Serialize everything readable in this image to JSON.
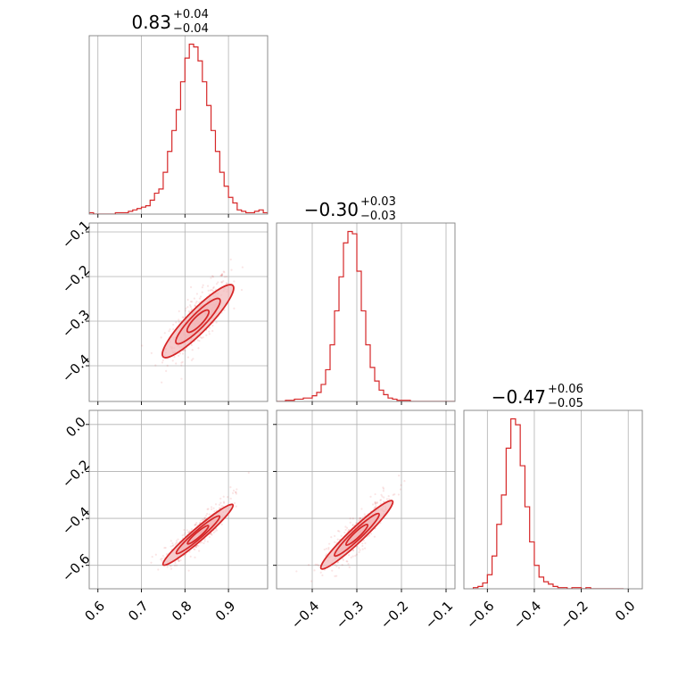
{
  "figure": {
    "accent_color": "#d62728",
    "fill_color": "#f2b6b8",
    "grid": true
  },
  "chart_data": [
    {
      "type": "histogram",
      "panel": "row-0-col-0",
      "title": {
        "value": "0.83",
        "plus": "+0.04",
        "minus": "−0.04"
      },
      "xlim": [
        0.58,
        0.99
      ],
      "bins_start": 0.58,
      "bin_width": 0.01,
      "counts": [
        1,
        0,
        0,
        0,
        0,
        0,
        1,
        1,
        1,
        2,
        3,
        4,
        5,
        6,
        10,
        15,
        18,
        30,
        45,
        60,
        75,
        95,
        112,
        122,
        120,
        110,
        95,
        78,
        60,
        45,
        30,
        20,
        12,
        8,
        3,
        2,
        1,
        1,
        2,
        3,
        1
      ],
      "x_ticks": [],
      "y_ticks": []
    },
    {
      "type": "scatter-contour",
      "panel": "row-1-col-0",
      "xlim": [
        0.58,
        0.99
      ],
      "ylim": [
        -0.48,
        -0.08
      ],
      "center": [
        0.83,
        -0.3
      ],
      "slope": 1.0,
      "spread": 0.028,
      "x_ticks": [],
      "y_ticks": [
        {
          "value": -0.1,
          "label": "−0.1"
        },
        {
          "value": -0.2,
          "label": "−0.2"
        },
        {
          "value": -0.3,
          "label": "−0.3"
        },
        {
          "value": -0.4,
          "label": "−0.4"
        }
      ]
    },
    {
      "type": "histogram",
      "panel": "row-1-col-1",
      "title": {
        "value": "−0.30",
        "plus": "+0.03",
        "minus": "−0.03"
      },
      "xlim": [
        -0.48,
        -0.08
      ],
      "bins_start": -0.48,
      "bin_width": 0.01,
      "counts": [
        0,
        0,
        1,
        1,
        2,
        2,
        3,
        3,
        5,
        8,
        15,
        28,
        50,
        80,
        110,
        140,
        150,
        148,
        115,
        80,
        50,
        30,
        18,
        10,
        6,
        3,
        2,
        1,
        1,
        1,
        0,
        0,
        0,
        0,
        0,
        0,
        0,
        0,
        0,
        0
      ],
      "x_ticks": [],
      "y_ticks": []
    },
    {
      "type": "scatter-contour",
      "panel": "row-2-col-0",
      "xlim": [
        0.58,
        0.99
      ],
      "ylim": [
        -0.7,
        0.06
      ],
      "center": [
        0.83,
        -0.47
      ],
      "slope": 1.6,
      "spread": 0.03,
      "x_ticks": [
        {
          "value": 0.6,
          "label": "0.6"
        },
        {
          "value": 0.7,
          "label": "0.7"
        },
        {
          "value": 0.8,
          "label": "0.8"
        },
        {
          "value": 0.9,
          "label": "0.9"
        }
      ],
      "y_ticks": [
        {
          "value": 0.0,
          "label": "0.0"
        },
        {
          "value": -0.2,
          "label": "−0.2"
        },
        {
          "value": -0.4,
          "label": "−0.4"
        },
        {
          "value": -0.6,
          "label": "−0.6"
        }
      ]
    },
    {
      "type": "scatter-contour",
      "panel": "row-2-col-1",
      "xlim": [
        -0.48,
        -0.08
      ],
      "ylim": [
        -0.7,
        0.06
      ],
      "center": [
        -0.3,
        -0.47
      ],
      "slope": 1.8,
      "spread": 0.035,
      "x_ticks": [
        {
          "value": -0.4,
          "label": "−0.4"
        },
        {
          "value": -0.3,
          "label": "−0.3"
        },
        {
          "value": -0.2,
          "label": "−0.2"
        },
        {
          "value": -0.1,
          "label": "−0.1"
        }
      ],
      "y_ticks": []
    },
    {
      "type": "histogram",
      "panel": "row-2-col-2",
      "title": {
        "value": "−0.47",
        "plus": "+0.06",
        "minus": "−0.05"
      },
      "xlim": [
        -0.7,
        0.06
      ],
      "bins_start": -0.66,
      "bin_width": 0.02,
      "counts": [
        1,
        2,
        5,
        12,
        28,
        55,
        80,
        120,
        145,
        140,
        105,
        70,
        40,
        20,
        10,
        6,
        4,
        2,
        1,
        1,
        0,
        1,
        1,
        0,
        1,
        0,
        0,
        0,
        0,
        0,
        0,
        0
      ],
      "x_ticks": [
        {
          "value": -0.6,
          "label": "−0.6"
        },
        {
          "value": -0.4,
          "label": "−0.4"
        },
        {
          "value": -0.2,
          "label": "−0.2"
        },
        {
          "value": 0.0,
          "label": "0.0"
        }
      ],
      "y_ticks": []
    }
  ]
}
